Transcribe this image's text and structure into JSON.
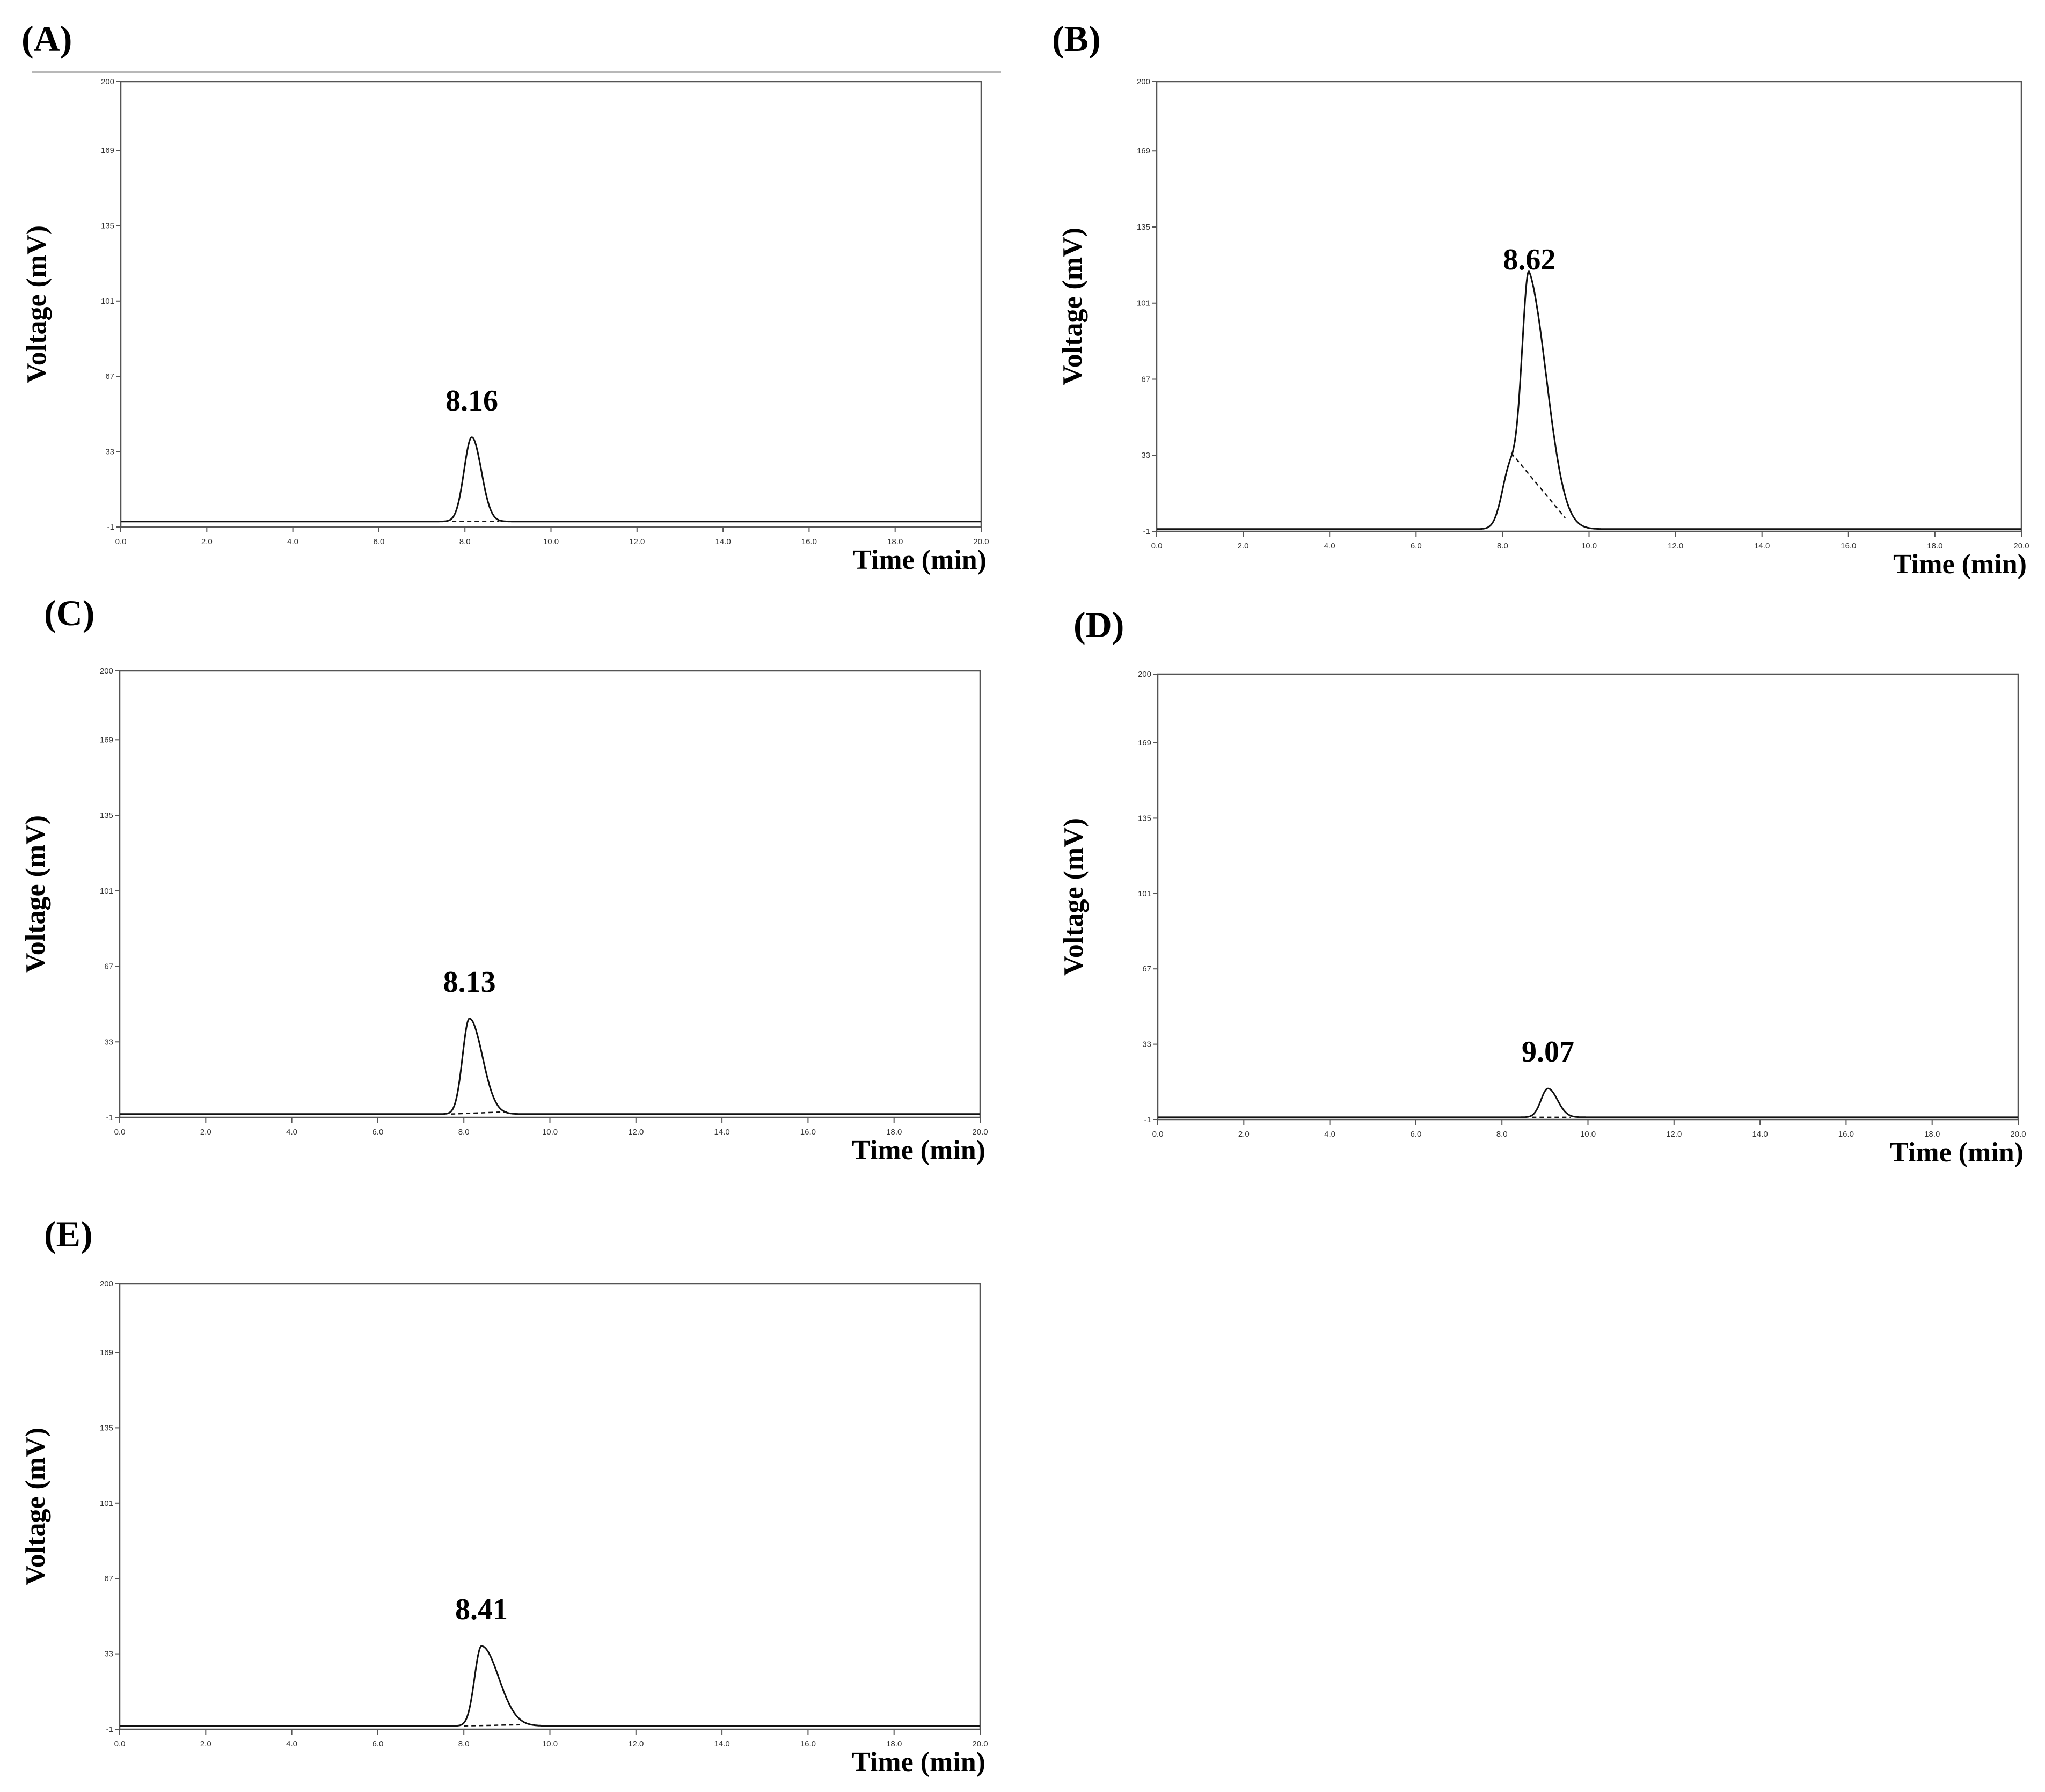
{
  "figure": {
    "panels": [
      {
        "id": "A",
        "label": "(A)",
        "peak_label": "8.16"
      },
      {
        "id": "B",
        "label": "(B)",
        "peak_label": "8.62"
      },
      {
        "id": "C",
        "label": "(C)",
        "peak_label": "8.13"
      },
      {
        "id": "D",
        "label": "(D)",
        "peak_label": "9.07"
      },
      {
        "id": "E",
        "label": "(E)",
        "peak_label": "8.41"
      }
    ]
  },
  "chart_data": [
    {
      "panel": "(A)",
      "type": "line",
      "xlabel": "Time (min)",
      "ylabel": "Voltage (mV)",
      "xlim": [
        0,
        20
      ],
      "ylim": [
        -1,
        200
      ],
      "xticks": [
        "0.0",
        "2.0",
        "4.0",
        "6.0",
        "8.0",
        "10.0",
        "12.0",
        "14.0",
        "16.0",
        "18.0",
        "20.0"
      ],
      "yticks": [
        "-1",
        "33",
        "67",
        "101",
        "135",
        "169",
        "200"
      ],
      "baseline": 1.5,
      "peaks": [
        {
          "center": 8.16,
          "height": 38,
          "width": 0.18,
          "tail": 0.22
        }
      ],
      "annotation": "8.16",
      "integration_baseline": {
        "x": [
          7.7,
          8.8
        ],
        "y": [
          1.5,
          1.5
        ]
      },
      "grid": false
    },
    {
      "panel": "(B)",
      "type": "line",
      "xlabel": "Time (min)",
      "ylabel": "Voltage (mV)",
      "xlim": [
        0,
        20
      ],
      "ylim": [
        -1,
        200
      ],
      "xticks": [
        "0.0",
        "2.0",
        "4.0",
        "6.0",
        "8.0",
        "10.0",
        "12.0",
        "14.0",
        "16.0",
        "18.0",
        "20.0"
      ],
      "yticks": [
        "-1",
        "33",
        "67",
        "101",
        "135",
        "169",
        "200"
      ],
      "baseline": 0,
      "peaks": [
        {
          "center": 8.2,
          "height": 29,
          "width": 0.2,
          "tail": 0.3
        },
        {
          "center": 8.62,
          "height": 104,
          "width": 0.16,
          "tail": 0.42
        }
      ],
      "annotation": "8.62",
      "integration_baseline": {
        "x": [
          8.2,
          9.45
        ],
        "y": [
          34,
          5
        ]
      },
      "grid": false
    },
    {
      "panel": "(C)",
      "type": "line",
      "xlabel": "Time (min)",
      "ylabel": "Voltage (mV)",
      "xlim": [
        0,
        20
      ],
      "ylim": [
        -1,
        200
      ],
      "xticks": [
        "0.0",
        "2.0",
        "4.0",
        "6.0",
        "8.0",
        "10.0",
        "12.0",
        "14.0",
        "16.0",
        "18.0",
        "20.0"
      ],
      "yticks": [
        "-1",
        "33",
        "67",
        "101",
        "135",
        "169",
        "200"
      ],
      "baseline": 0.5,
      "peaks": [
        {
          "center": 8.13,
          "height": 43,
          "width": 0.16,
          "tail": 0.3
        }
      ],
      "annotation": "8.13",
      "integration_baseline": {
        "x": [
          7.7,
          9.0
        ],
        "y": [
          0.5,
          1.5
        ]
      },
      "grid": false
    },
    {
      "panel": "(D)",
      "type": "line",
      "xlabel": "Time (min)",
      "ylabel": "Voltage (mV)",
      "xlim": [
        0,
        20
      ],
      "ylim": [
        -1,
        200
      ],
      "xticks": [
        "0.0",
        "2.0",
        "4.0",
        "6.0",
        "8.0",
        "10.0",
        "12.0",
        "14.0",
        "16.0",
        "18.0",
        "20.0"
      ],
      "yticks": [
        "-1",
        "33",
        "67",
        "101",
        "135",
        "169",
        "200"
      ],
      "baseline": 0,
      "peaks": [
        {
          "center": 9.07,
          "height": 13,
          "width": 0.16,
          "tail": 0.22
        }
      ],
      "annotation": "9.07",
      "integration_baseline": {
        "x": [
          8.7,
          9.6
        ],
        "y": [
          0,
          0
        ]
      },
      "grid": false
    },
    {
      "panel": "(E)",
      "type": "line",
      "xlabel": "Time (min)",
      "ylabel": "Voltage (mV)",
      "xlim": [
        0,
        20
      ],
      "ylim": [
        -1,
        200
      ],
      "xticks": [
        "0.0",
        "2.0",
        "4.0",
        "6.0",
        "8.0",
        "10.0",
        "12.0",
        "14.0",
        "16.0",
        "18.0",
        "20.0"
      ],
      "yticks": [
        "-1",
        "33",
        "67",
        "101",
        "135",
        "169",
        "200"
      ],
      "baseline": 0.5,
      "peaks": [
        {
          "center": 8.41,
          "height": 36,
          "width": 0.16,
          "tail": 0.4
        }
      ],
      "annotation": "8.41",
      "integration_baseline": {
        "x": [
          8.0,
          9.3
        ],
        "y": [
          0.5,
          1.0
        ]
      },
      "grid": false
    }
  ]
}
